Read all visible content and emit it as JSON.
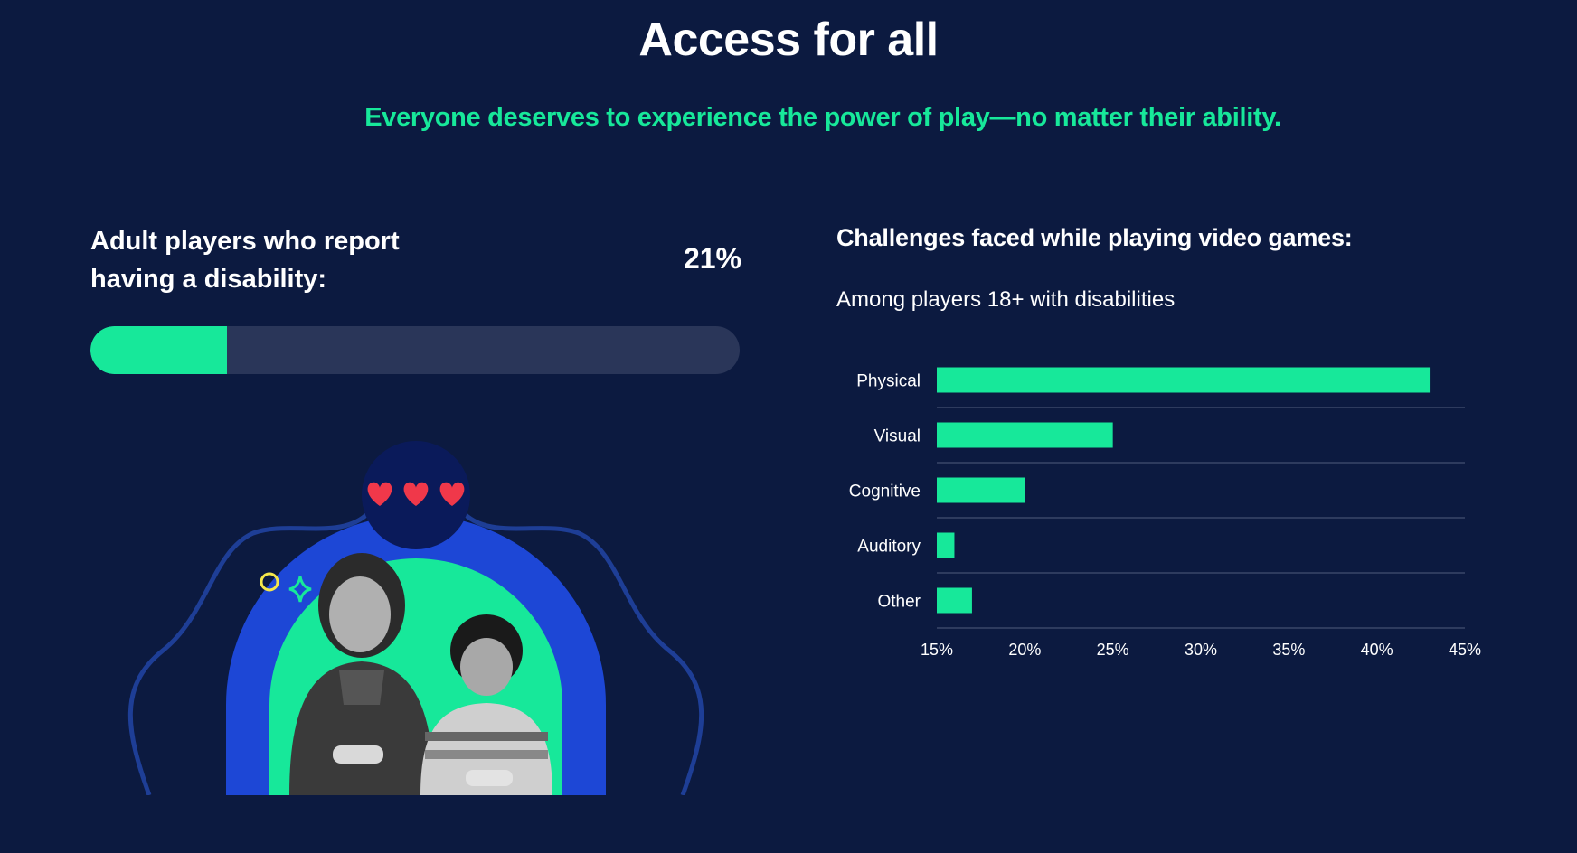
{
  "header": {
    "title": "Access for all",
    "subtitle": "Everyone deserves to experience the power of play—no matter their ability."
  },
  "stat": {
    "label": "Adult players who report having a disability:",
    "value_text": "21%",
    "fraction": 0.21
  },
  "chart_data": {
    "type": "bar",
    "orientation": "horizontal",
    "title": "Challenges faced while playing video games:",
    "subtitle": "Among players 18+ with disabilities",
    "categories": [
      "Physical",
      "Visual",
      "Cognitive",
      "Auditory",
      "Other"
    ],
    "values": [
      43,
      25,
      20,
      16,
      17
    ],
    "xlim": [
      15,
      45
    ],
    "xticks": [
      "15%",
      "20%",
      "25%",
      "30%",
      "35%",
      "40%",
      "45%"
    ],
    "xtick_values": [
      15,
      20,
      25,
      30,
      35,
      40,
      45
    ],
    "grid": "horizontal-separators",
    "legend": "none"
  },
  "colors": {
    "background": "#0c1a40",
    "accent": "#17e89a",
    "track": "#2a3659",
    "arch_blue": "#1d47d6",
    "heart_red": "#f0384a"
  },
  "illustration": {
    "icons": [
      "heart-icon",
      "heart-icon",
      "heart-icon",
      "circle-sparkle-icon",
      "diamond-sparkle-icon"
    ]
  }
}
